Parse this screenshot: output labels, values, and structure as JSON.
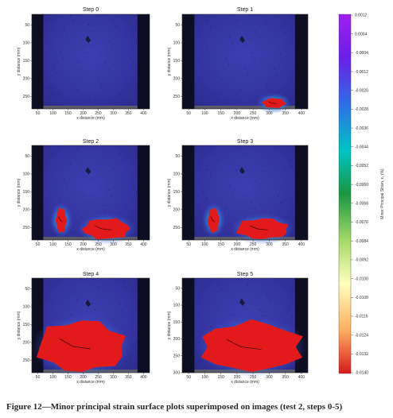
{
  "caption": "Figure 12—Minor principal strain surface plots superimposed on images (test 2, steps 0-5)",
  "colorbar": {
    "label": "Minor Principal Strain, ε₁ (%)",
    "ticks": [
      "0.0012",
      "0.0004",
      "-0.0004",
      "-0.0012",
      "-0.0020",
      "-0.0028",
      "-0.0036",
      "-0.0044",
      "-0.0052",
      "-0.0060",
      "-0.0068",
      "-0.0076",
      "-0.0084",
      "-0.0092",
      "-0.0100",
      "-0.0108",
      "-0.0116",
      "-0.0124",
      "-0.0132",
      "-0.0140"
    ],
    "range": [
      -0.014,
      0.0012
    ],
    "colors": [
      "#d7191c",
      "#fdae61",
      "#ffffbf",
      "#a6d96a",
      "#1a9641",
      "#00c4c4",
      "#2f6ee6",
      "#6a1fe6",
      "#a020f0"
    ]
  },
  "chart_data": [
    {
      "type": "heatmap",
      "title": "Step 0",
      "xlabel": "x distance (mm)",
      "ylabel": "y distance (mm)",
      "xticks": [
        "50",
        "100",
        "150",
        "200",
        "250",
        "300",
        "350",
        "400"
      ],
      "yticks": [
        "50",
        "100",
        "150",
        "200",
        "250"
      ],
      "xlim": [
        30,
        420
      ],
      "ylim": [
        285,
        20
      ],
      "high_strain_regions": []
    },
    {
      "type": "heatmap",
      "title": "Step 1",
      "xlabel": "x distance (mm)",
      "ylabel": "y distance (mm)",
      "xticks": [
        "50",
        "100",
        "150",
        "200",
        "250",
        "300",
        "350",
        "400"
      ],
      "yticks": [
        "50",
        "100",
        "150",
        "200",
        "250"
      ],
      "xlim": [
        30,
        420
      ],
      "ylim": [
        285,
        20
      ],
      "high_strain_regions": [
        {
          "x": [
            280,
            350
          ],
          "y": [
            255,
            285
          ],
          "peak_strain": -0.014
        }
      ]
    },
    {
      "type": "heatmap",
      "title": "Step 2",
      "xlabel": "x distance (mm)",
      "ylabel": "y distance (mm)",
      "xticks": [
        "50",
        "100",
        "150",
        "200",
        "250",
        "300",
        "350",
        "400"
      ],
      "yticks": [
        "50",
        "100",
        "150",
        "200",
        "250"
      ],
      "xlim": [
        30,
        420
      ],
      "ylim": [
        285,
        20
      ],
      "high_strain_regions": [
        {
          "x": [
            110,
            145
          ],
          "y": [
            195,
            265
          ],
          "peak_strain": -0.014
        },
        {
          "x": [
            200,
            355
          ],
          "y": [
            225,
            285
          ],
          "peak_strain": -0.014
        }
      ]
    },
    {
      "type": "heatmap",
      "title": "Step 3",
      "xlabel": "x distance (mm)",
      "ylabel": "y distance (mm)",
      "xticks": [
        "50",
        "100",
        "150",
        "200",
        "250",
        "300",
        "350",
        "400"
      ],
      "yticks": [
        "50",
        "100",
        "150",
        "200",
        "250"
      ],
      "xlim": [
        30,
        420
      ],
      "ylim": [
        285,
        20
      ],
      "high_strain_regions": [
        {
          "x": [
            110,
            145
          ],
          "y": [
            195,
            265
          ],
          "peak_strain": -0.014
        },
        {
          "x": [
            200,
            360
          ],
          "y": [
            225,
            285
          ],
          "peak_strain": -0.014
        }
      ]
    },
    {
      "type": "heatmap",
      "title": "Step 4",
      "xlabel": "x distance (mm)",
      "ylabel": "y distance (mm)",
      "xticks": [
        "50",
        "100",
        "150",
        "200",
        "250",
        "300",
        "350",
        "400"
      ],
      "yticks": [
        "50",
        "100",
        "150",
        "200",
        "250"
      ],
      "xlim": [
        30,
        420
      ],
      "ylim": [
        285,
        20
      ],
      "high_strain_regions": [
        {
          "x": [
            50,
            340
          ],
          "y": [
            140,
            290
          ],
          "peak_strain": -0.014
        }
      ]
    },
    {
      "type": "heatmap",
      "title": "Step 5",
      "xlabel": "x distance (mm)",
      "ylabel": "y distance (mm)",
      "xticks": [
        "50",
        "100",
        "150",
        "200",
        "250",
        "300",
        "350",
        "400"
      ],
      "yticks": [
        "50",
        "100",
        "150",
        "200",
        "250",
        "300"
      ],
      "xlim": [
        30,
        420
      ],
      "ylim": [
        300,
        20
      ],
      "high_strain_regions": [
        {
          "x": [
            90,
            400
          ],
          "y": [
            150,
            300
          ],
          "peak_strain": -0.014
        }
      ]
    }
  ]
}
